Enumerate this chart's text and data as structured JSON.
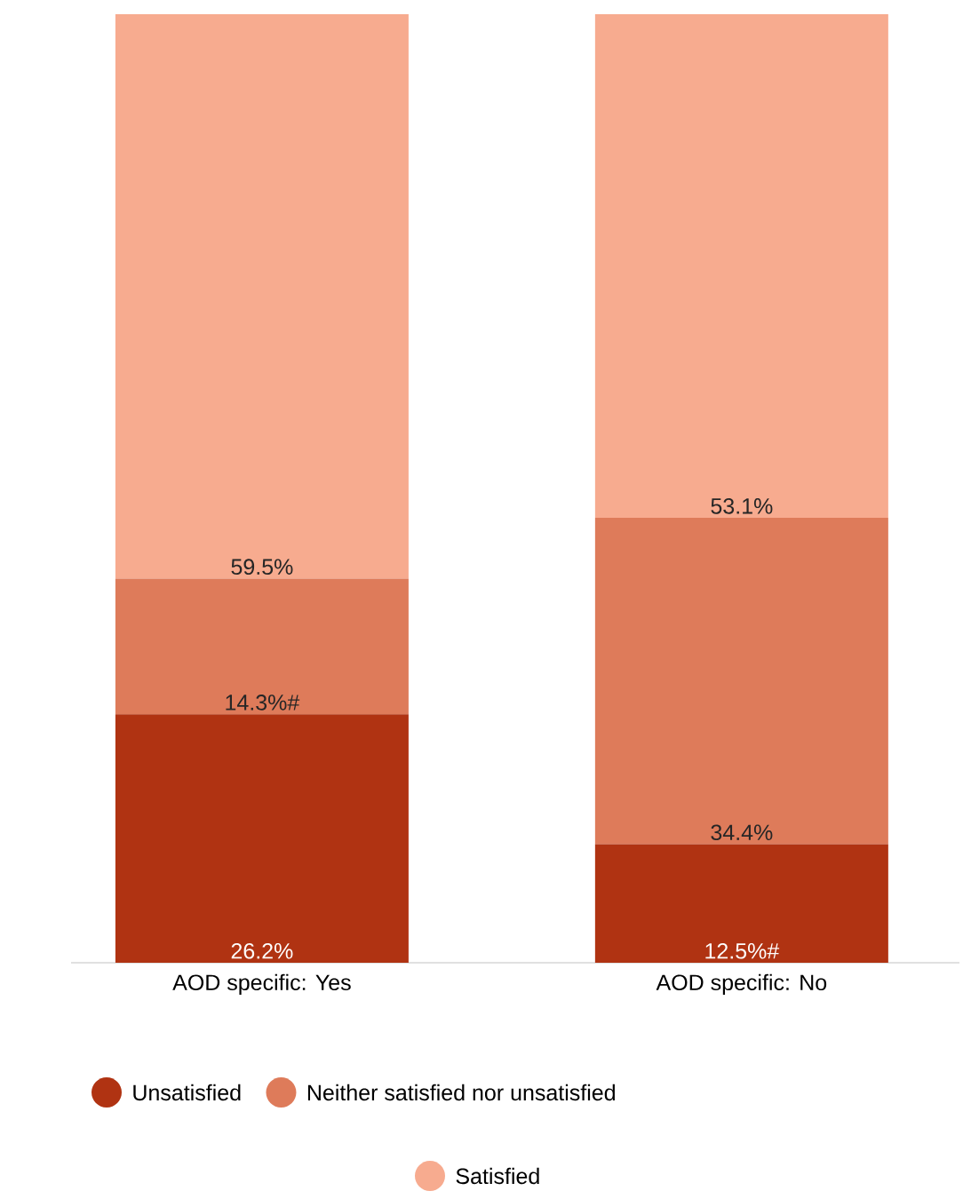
{
  "chart_data": {
    "type": "bar",
    "stacked": true,
    "categories": [
      "AOD specific: Yes",
      "AOD specific: No"
    ],
    "series": [
      {
        "name": "Unsatisfied",
        "color": "#b03312",
        "values": [
          26.2,
          12.5
        ],
        "value_labels": [
          "26.2%",
          "12.5%#"
        ]
      },
      {
        "name": "Neither satisfied nor unsatisfied",
        "color": "#de7b5a",
        "values": [
          14.3,
          34.4
        ],
        "value_labels": [
          "14.3%#",
          "34.4%"
        ]
      },
      {
        "name": "Satisfied",
        "color": "#f7ab8f",
        "values": [
          59.5,
          53.1
        ],
        "value_labels": [
          "59.5%",
          "53.1%"
        ]
      }
    ],
    "legend": "bottom"
  }
}
